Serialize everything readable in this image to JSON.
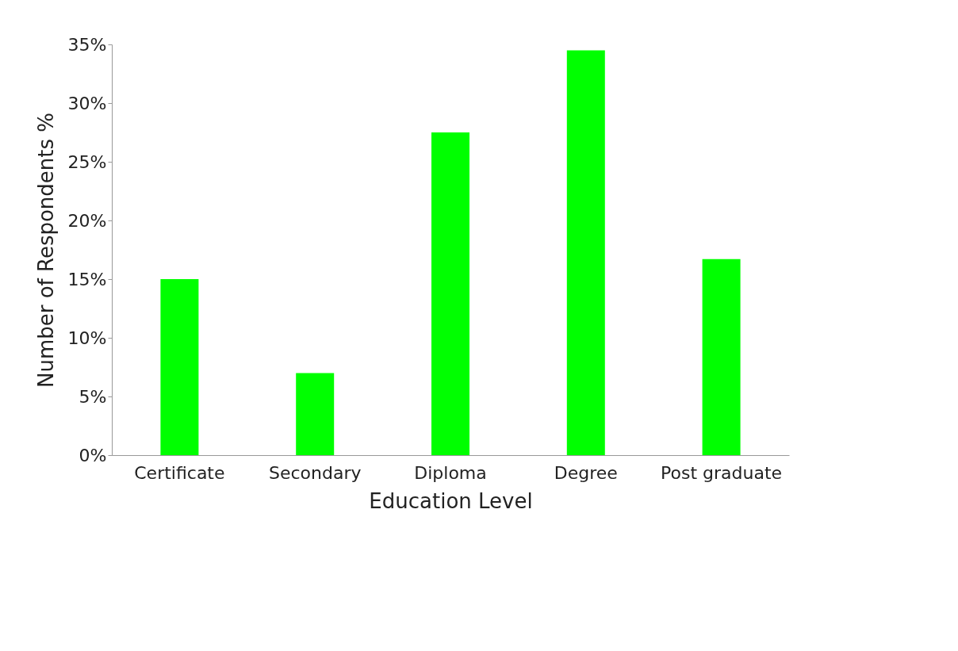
{
  "chart_data": {
    "type": "bar",
    "xlabel": "Education Level",
    "ylabel": "Number of Respondents %",
    "categories": [
      "Certificate",
      "Secondary",
      "Diploma",
      "Degree",
      "Post graduate"
    ],
    "values": [
      15,
      7,
      27.5,
      34.5,
      16.7
    ],
    "color": "#00ff00",
    "ylim": [
      0,
      35
    ],
    "yticks": [
      {
        "value": 0,
        "label": "0%"
      },
      {
        "value": 5,
        "label": "5%"
      },
      {
        "value": 10,
        "label": "10%"
      },
      {
        "value": 15,
        "label": "15%"
      },
      {
        "value": 20,
        "label": "20%"
      },
      {
        "value": 25,
        "label": "25%"
      },
      {
        "value": 30,
        "label": "30%"
      },
      {
        "value": 35,
        "label": "35%"
      }
    ],
    "grid": false
  }
}
